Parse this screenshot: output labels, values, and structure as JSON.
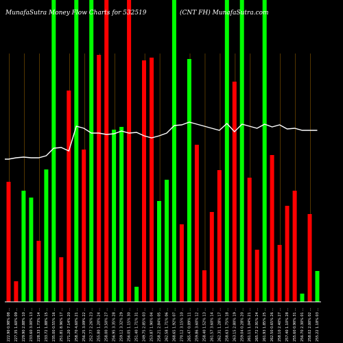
{
  "header": {
    "left": "MunafaSutra  Money Flow  Charts for 532519",
    "right": "(CNT FH)  MunafaSutra.com"
  },
  "colors": {
    "background": "#000000",
    "up": "#00ff00",
    "down": "#ff0000",
    "grid": "#8b5a00",
    "baseline": "#ffffff",
    "line": "#ffffff"
  },
  "chart_data": {
    "type": "bar",
    "title": "MunafaSutra  Money Flow  Charts for 532519",
    "subtitle": "(CNT FH)  MunafaSutra.com",
    "ylim": [
      0,
      440
    ],
    "categories": [
      "222.90 0.98% 08 ...",
      "227.35 1.60% 09 ...",
      "229.90 2.88% 10 ...",
      "233.60 3.00% 13 ...",
      "228.33 1.73% 14 ...",
      "233.72 1.88% 15 ...",
      "235.00 0.55% 16 ...",
      "251.81 8.96% 17 ...",
      "271.20 7.14% 20 ...",
      "258.70 4.60% 21 ...",
      "256.25 3.09% 22 ...",
      "252.77 2.26% 23 ...",
      "255.80 1.20% 24 ...",
      "258.00 3.50% 27 ...",
      "256.95 3.35% 28 ...",
      "259.12 3.32% 29 ...",
      "256.05 1.15% 30 ...",
      "251.40 1.71% 31 ...",
      "249.75 2.85% 03 ...",
      "253.87 1.90% 04 ...",
      "258.21 2.84% 05 ...",
      "262.58 1.71% 06 ...",
      "268.65 1.92% 07 ...",
      "270.12 3.15% 10 ...",
      "265.47 0.89% 11 ...",
      "259.86 3.60% 12 ...",
      "258.40 1.52% 13 ...",
      "261.57 3.60% 14 ...",
      "262.31 1.28% 17 ...",
      "258.63 1.75% 18 ...",
      "263.15 2.80% 19 ...",
      "259.04 0.28% 20 ...",
      "261.11 1.04% 21 ...",
      "265.72 2.91% 24 ...",
      "261.93 1.85% 25 ...",
      "262.50 0.65% 26 ...",
      "258.10 2.40% 27 ...",
      "257.40 1.10% 28 ...",
      "255.60 0.90% 31 ...",
      "256.70 2.30% 01 ...",
      "258.02 2.00% 02 ...",
      "255.22 1.18% 03 ..."
    ],
    "series": [
      {
        "values": [
          175,
          30,
          162,
          152,
          89,
          193,
          440,
          65,
          308,
          440,
          222,
          440,
          360,
          440,
          251,
          255,
          440,
          22,
          352,
          356,
          147,
          178,
          440,
          113,
          354,
          229,
          46,
          131,
          192,
          440,
          321,
          440,
          181,
          76,
          440,
          214,
          83,
          140,
          162,
          12,
          128,
          45
        ],
        "direction": [
          "down",
          "down",
          "up",
          "up",
          "down",
          "up",
          "up",
          "down",
          "down",
          "up",
          "down",
          "up",
          "down",
          "down",
          "up",
          "up",
          "down",
          "up",
          "down",
          "down",
          "up",
          "up",
          "up",
          "down",
          "up",
          "down",
          "down",
          "down",
          "down",
          "up",
          "down",
          "up",
          "down",
          "down",
          "up",
          "down",
          "down",
          "down",
          "down",
          "up",
          "down",
          "up"
        ]
      },
      {
        "values": [
          208,
          210,
          211,
          210,
          210,
          213,
          224,
          225,
          220,
          256,
          253,
          246,
          246,
          244,
          245,
          249,
          246,
          247,
          242,
          239,
          242,
          246,
          257,
          258,
          262,
          259,
          256,
          253,
          250,
          260,
          248,
          259,
          256,
          253,
          259,
          255,
          258,
          252,
          253,
          250,
          250,
          250
        ]
      }
    ],
    "grid": true
  }
}
